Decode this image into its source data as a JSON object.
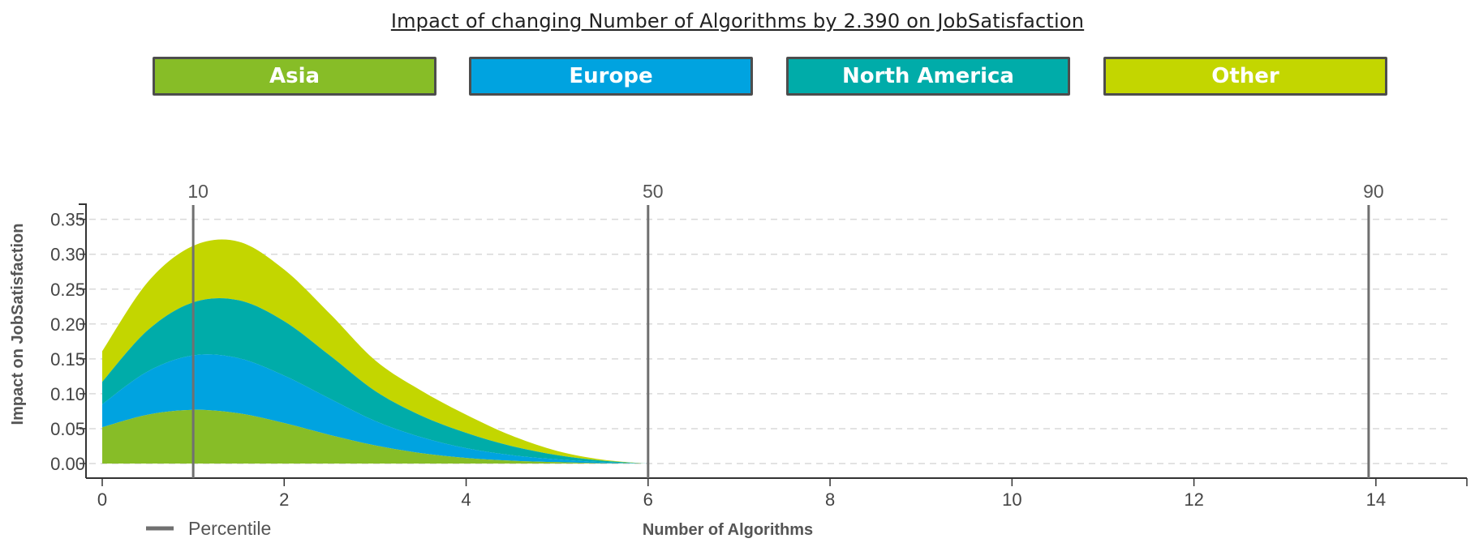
{
  "chart_data": {
    "type": "area",
    "stacked": true,
    "title": "Impact of changing Number of Algorithms by 2.390 on JobSatisfaction",
    "xlabel": "Number of Algorithms",
    "ylabel": "Impact on JobSatisfaction",
    "xlim": [
      0,
      15
    ],
    "ylim": [
      0,
      0.37
    ],
    "x_ticks": [
      0,
      2,
      4,
      6,
      8,
      10,
      12,
      14
    ],
    "x_tick_labels": [
      "0",
      "2",
      "4",
      "6",
      "8",
      "10",
      "12",
      "14"
    ],
    "y_ticks": [
      0,
      0.05,
      0.1,
      0.15,
      0.2,
      0.25,
      0.3,
      0.35
    ],
    "y_tick_labels": [
      "0.00",
      "0.05",
      "0.10",
      "0.15",
      "0.20",
      "0.25",
      "0.30",
      "0.35"
    ],
    "grid": "horizontal-dashed",
    "x": [
      0,
      0.5,
      1,
      1.5,
      2,
      2.5,
      3,
      3.5,
      4,
      4.5,
      5,
      5.5,
      6
    ],
    "series": [
      {
        "name": "Asia",
        "color": "#87bd27",
        "values": [
          0.052,
          0.07,
          0.077,
          0.072,
          0.058,
          0.041,
          0.026,
          0.015,
          0.008,
          0.004,
          0.002,
          0.0005,
          0.0
        ]
      },
      {
        "name": "Europe",
        "color": "#00a3e0",
        "values": [
          0.033,
          0.062,
          0.078,
          0.079,
          0.068,
          0.052,
          0.035,
          0.023,
          0.014,
          0.008,
          0.004,
          0.0015,
          0.0
        ]
      },
      {
        "name": "North America",
        "color": "#00aca9",
        "values": [
          0.032,
          0.059,
          0.076,
          0.083,
          0.078,
          0.062,
          0.043,
          0.031,
          0.022,
          0.013,
          0.006,
          0.002,
          0.0
        ]
      },
      {
        "name": "Other",
        "color": "#c3d600",
        "values": [
          0.044,
          0.069,
          0.081,
          0.084,
          0.074,
          0.06,
          0.044,
          0.036,
          0.026,
          0.015,
          0.006,
          0.0015,
          0.0
        ]
      }
    ],
    "percentiles": [
      {
        "label": "10",
        "x": 1.0
      },
      {
        "label": "50",
        "x": 6.0
      },
      {
        "label": "90",
        "x": 13.92
      }
    ],
    "percentile_legend": "Percentile",
    "percentile_color": "#707070",
    "legend_position": "top"
  }
}
